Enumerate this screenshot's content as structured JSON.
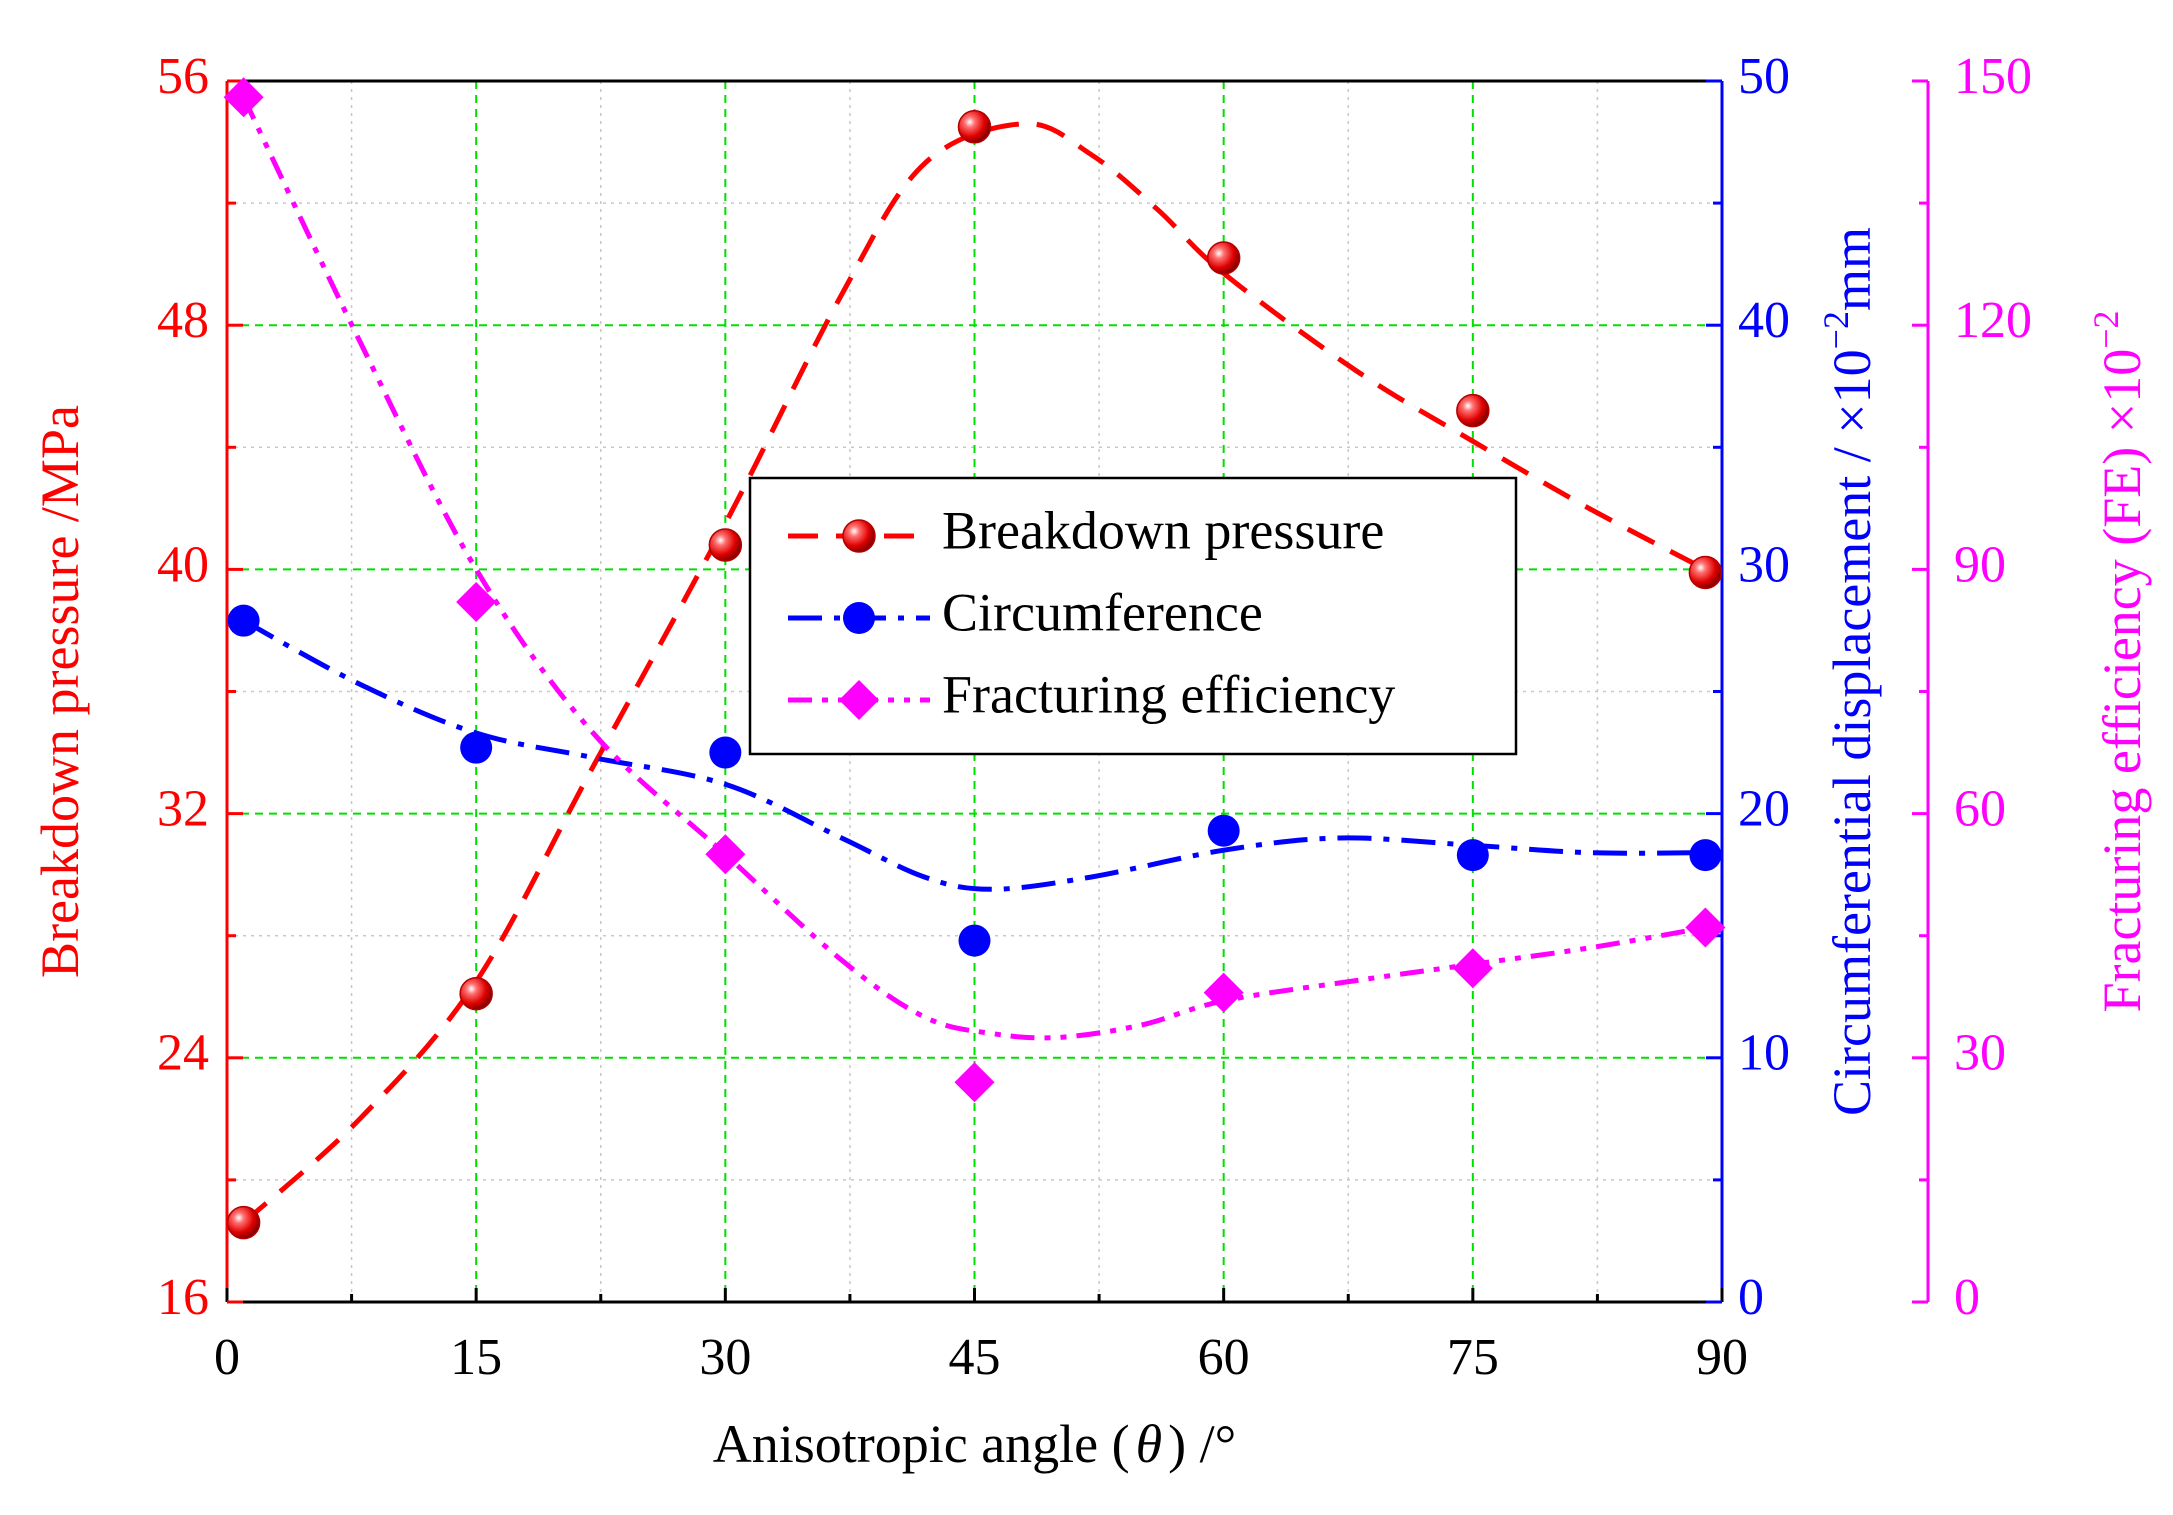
{
  "chart_data": {
    "type": "line",
    "xlabel": "Anisotropic angle (θ) /°",
    "xlabel_parts": {
      "pre": "Anisotropic angle (",
      "theta": "θ",
      "post": ") /°"
    },
    "xlim": [
      0,
      90
    ],
    "xticks": [
      "0",
      "15",
      "30",
      "45",
      "60",
      "75",
      "90"
    ],
    "x": [
      1,
      15,
      30,
      45,
      60,
      75,
      89
    ],
    "axes": {
      "left": {
        "label": "Breakdown pressure /MPa",
        "color": "#ff0000",
        "lim": [
          16,
          56
        ],
        "ticks": [
          "16",
          "24",
          "32",
          "40",
          "48",
          "56"
        ]
      },
      "right1": {
        "label": "Circumferential displacement",
        "unit_prefix": "/ ×10",
        "exponent": "−2",
        "unit": "mm",
        "color": "#0000ff",
        "lim": [
          0,
          50
        ],
        "ticks": [
          "0",
          "10",
          "20",
          "30",
          "40",
          "50"
        ]
      },
      "right2": {
        "label": "Fracturing efficiency (FE) ×10",
        "exponent": "−2",
        "color": "#ff00ff",
        "lim": [
          0,
          150
        ],
        "ticks": [
          "0",
          "30",
          "60",
          "90",
          "120",
          "150"
        ]
      }
    },
    "series": [
      {
        "name": "Breakdown pressure",
        "axis": "left",
        "color": "#ff0000",
        "marker": "sphere",
        "line": "dash",
        "values": [
          18.6,
          26.1,
          40.8,
          54.5,
          50.2,
          45.2,
          39.9
        ],
        "fit": [
          [
            1,
            18.6
          ],
          [
            8,
            22.0
          ],
          [
            15,
            26.5
          ],
          [
            22,
            33.5
          ],
          [
            30,
            41.5
          ],
          [
            37,
            49.0
          ],
          [
            42,
            53.3
          ],
          [
            48,
            54.6
          ],
          [
            52,
            53.6
          ],
          [
            56,
            51.8
          ],
          [
            60,
            49.7
          ],
          [
            68,
            46.5
          ],
          [
            75,
            44.2
          ],
          [
            82,
            42.0
          ],
          [
            89,
            40.0
          ]
        ]
      },
      {
        "name": "Circumference",
        "axis": "right1",
        "color": "#0000ff",
        "marker": "circle",
        "line": "dashdot",
        "values": [
          27.9,
          22.7,
          22.5,
          14.8,
          19.3,
          18.3,
          18.3
        ],
        "fit": [
          [
            1,
            27.9
          ],
          [
            8,
            25.3
          ],
          [
            15,
            23.3
          ],
          [
            22,
            22.3
          ],
          [
            30,
            21.2
          ],
          [
            37,
            19.0
          ],
          [
            42,
            17.4
          ],
          [
            46,
            16.9
          ],
          [
            52,
            17.4
          ],
          [
            60,
            18.5
          ],
          [
            67,
            19.0
          ],
          [
            75,
            18.7
          ],
          [
            82,
            18.4
          ],
          [
            89,
            18.4
          ]
        ]
      },
      {
        "name": "Fracturing efficiency",
        "axis": "right2",
        "color": "#ff00ff",
        "marker": "diamond",
        "line": "dashdotdot",
        "values": [
          148,
          86,
          55,
          27,
          38,
          41,
          46
        ],
        "fit": [
          [
            1,
            148
          ],
          [
            8,
            118
          ],
          [
            15,
            90
          ],
          [
            22,
            70
          ],
          [
            30,
            55
          ],
          [
            37,
            42
          ],
          [
            42,
            35
          ],
          [
            46,
            33
          ],
          [
            50,
            32.5
          ],
          [
            55,
            34
          ],
          [
            60,
            37
          ],
          [
            68,
            39.5
          ],
          [
            75,
            41.5
          ],
          [
            82,
            43.5
          ],
          [
            89,
            46
          ]
        ]
      }
    ],
    "legend": {
      "placement": "center",
      "entries": [
        "Breakdown pressure",
        "Circumference",
        "Fracturing efficiency"
      ]
    },
    "grid": true
  }
}
